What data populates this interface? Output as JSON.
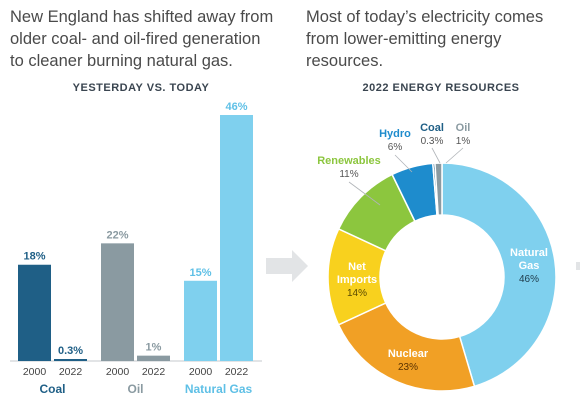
{
  "intro_left": "New England has shifted away from older coal- and oil-fired generation to cleaner burning natural gas.",
  "intro_right": "Most of today’s electricity comes from lower-emitting energy resources.",
  "chart_data": [
    {
      "type": "bar",
      "title": "YESTERDAY VS. TODAY",
      "groups": [
        {
          "name": "Coal",
          "color": "#1f5f86",
          "bars": [
            {
              "year": "2000",
              "value": 18,
              "label": "18%"
            },
            {
              "year": "2022",
              "value": 0.3,
              "label": "0.3%"
            }
          ]
        },
        {
          "name": "Oil",
          "color": "#8a9aa1",
          "bars": [
            {
              "year": "2000",
              "value": 22,
              "label": "22%"
            },
            {
              "year": "2022",
              "value": 1,
              "label": "1%"
            }
          ]
        },
        {
          "name": "Natural Gas",
          "color": "#7fd0ee",
          "bars": [
            {
              "year": "2000",
              "value": 15,
              "label": "15%"
            },
            {
              "year": "2022",
              "value": 46,
              "label": "46%"
            }
          ]
        }
      ],
      "ylim": [
        0,
        46
      ]
    },
    {
      "type": "pie",
      "title": "2022 ENERGY RESOURCES",
      "slices": [
        {
          "name": "Natural Gas",
          "value": 46,
          "label": "46%",
          "color": "#7fd0ee"
        },
        {
          "name": "Nuclear",
          "value": 23,
          "label": "23%",
          "color": "#f1a025"
        },
        {
          "name": "Net Imports",
          "value": 14,
          "label": "14%",
          "color": "#f8d11e"
        },
        {
          "name": "Renewables",
          "value": 11,
          "label": "11%",
          "color": "#8cc63e"
        },
        {
          "name": "Hydro",
          "value": 6,
          "label": "6%",
          "color": "#1e8ccd"
        },
        {
          "name": "Coal",
          "value": 0.3,
          "label": "0.3%",
          "color": "#1f5f86"
        },
        {
          "name": "Oil",
          "value": 1,
          "label": "1%",
          "color": "#8a9aa1"
        }
      ]
    }
  ]
}
